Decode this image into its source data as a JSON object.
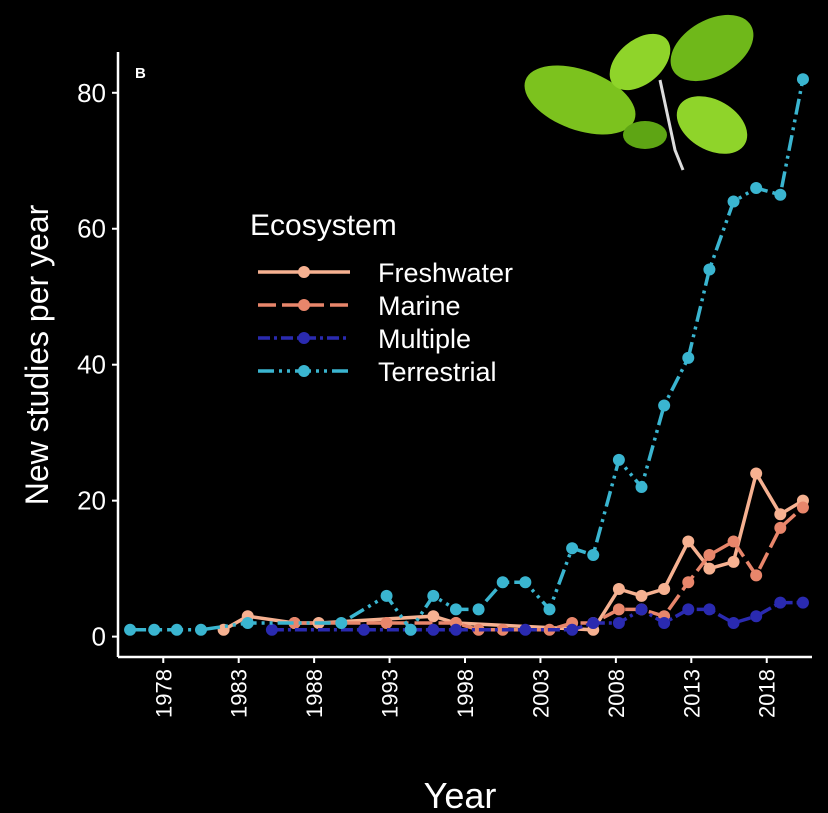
{
  "chart_data": {
    "type": "line",
    "panel_label": "B",
    "x_label": "Year",
    "y_label": "New studies per year",
    "legend_title": "Ecosystem",
    "xlim": [
      1975,
      2021
    ],
    "ylim": [
      -3,
      86
    ],
    "xticks": [
      1978,
      1983,
      1988,
      1993,
      1998,
      2003,
      2008,
      2013,
      2018
    ],
    "yticks": [
      0,
      20,
      40,
      60,
      80
    ],
    "series": [
      {
        "name": "Freshwater",
        "color": "#f6b191",
        "x": [
          1982.0,
          1983.6,
          1986.7,
          1988.3,
          1995.9,
          1997.4,
          2006.5,
          2008.2,
          2009.7,
          2011.2,
          2012.8,
          2014.2,
          2015.8,
          2017.3,
          2018.9,
          2020.4
        ],
        "values": [
          1,
          3,
          2,
          2,
          3,
          2,
          1,
          7,
          6,
          7,
          14,
          10,
          11,
          24,
          18,
          20
        ]
      },
      {
        "name": "Marine",
        "color": "#e8866b",
        "x": [
          1986.7,
          1992.8,
          1997.4,
          1998.9,
          2000.5,
          2003.6,
          2005.1,
          2006.5,
          2008.2,
          2009.7,
          2011.2,
          2012.8,
          2014.2,
          2015.8,
          2017.3,
          2018.9,
          2020.4
        ],
        "values": [
          2,
          2,
          2,
          1,
          1,
          1,
          2,
          2,
          4,
          4,
          3,
          8,
          12,
          14,
          9,
          16,
          19
        ]
      },
      {
        "name": "Multiple",
        "color": "#2a2ab0",
        "x": [
          1985.2,
          1991.3,
          1994.4,
          1995.9,
          1997.4,
          2002.0,
          2005.1,
          2006.5,
          2008.2,
          2009.7,
          2011.2,
          2012.8,
          2014.2,
          2015.8,
          2017.3,
          2018.9,
          2020.4
        ],
        "values": [
          1,
          1,
          1,
          1,
          1,
          1,
          1,
          2,
          2,
          4,
          2,
          4,
          4,
          2,
          3,
          5,
          5
        ]
      },
      {
        "name": "Terrestrial",
        "color": "#3ab5d0",
        "x": [
          1975.8,
          1977.4,
          1978.9,
          1980.5,
          1983.6,
          1989.8,
          1992.8,
          1994.4,
          1995.9,
          1997.4,
          1998.9,
          2000.5,
          2002.0,
          2003.6,
          2005.1,
          2006.5,
          2008.2,
          2009.7,
          2011.2,
          2012.8,
          2014.2,
          2015.8,
          2017.3,
          2018.9,
          2020.4
        ],
        "values": [
          1,
          1,
          1,
          1,
          2,
          2,
          6,
          1,
          6,
          4,
          4,
          8,
          8,
          4,
          13,
          12,
          26,
          22,
          34,
          41,
          54,
          64,
          66,
          65,
          82
        ]
      }
    ]
  }
}
